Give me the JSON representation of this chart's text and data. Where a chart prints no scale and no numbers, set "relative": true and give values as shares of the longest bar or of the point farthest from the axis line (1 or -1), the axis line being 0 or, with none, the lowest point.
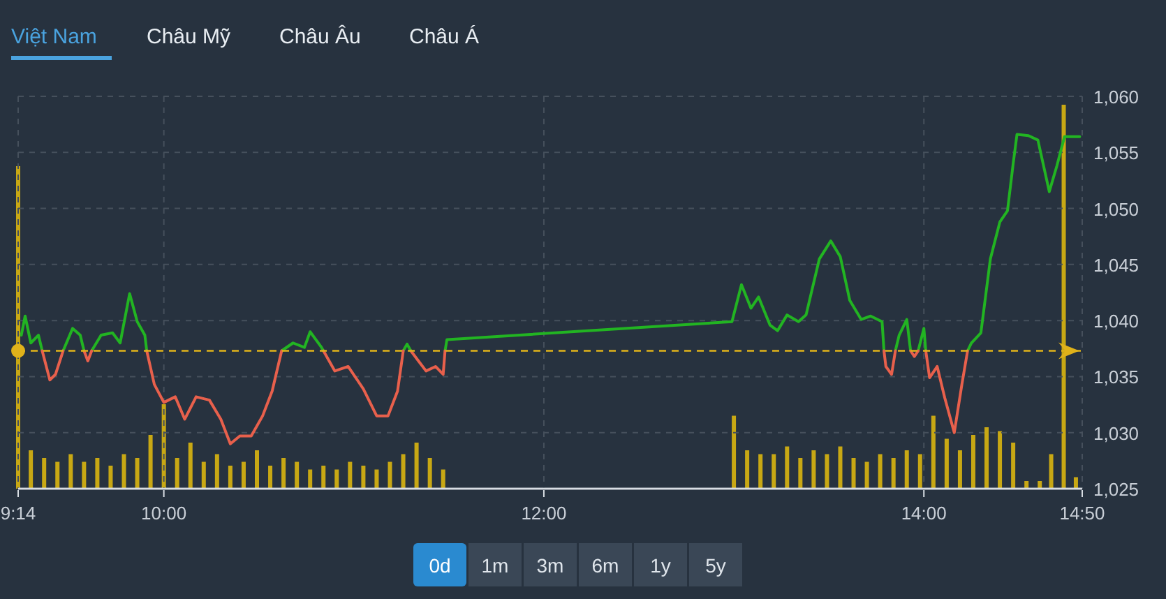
{
  "chart_data": [
    {
      "type": "line",
      "annotations": [
        "Việt Nam",
        "Châu Mỹ",
        "Châu Âu",
        "Châu Á",
        "0d",
        "1m",
        "3m",
        "6m",
        "1y",
        "5y"
      ],
      "xlim": [
        9.2333,
        14.8333
      ],
      "xticks": [
        {
          "value": 9.2333,
          "label": "9:14"
        },
        {
          "value": 10,
          "label": "10:00"
        },
        {
          "value": 12,
          "label": "12:00"
        },
        {
          "value": 14,
          "label": "14:00"
        },
        {
          "value": 14.8333,
          "label": "14:50"
        }
      ],
      "ylim": [
        1025,
        1060
      ],
      "yticks": [
        {
          "value": 1025,
          "label": "1,025"
        },
        {
          "value": 1030,
          "label": "1,030"
        },
        {
          "value": 1035,
          "label": "1,035"
        },
        {
          "value": 1040,
          "label": "1,040"
        },
        {
          "value": 1045,
          "label": "1,045"
        },
        {
          "value": 1050,
          "label": "1,050"
        },
        {
          "value": 1055,
          "label": "1,055"
        },
        {
          "value": 1060,
          "label": "1,060"
        }
      ],
      "grid": true,
      "line_style": "solid",
      "marker": "none",
      "ref_lines": [
        {
          "axis": "y",
          "value": 1037.3,
          "color": "#e0b21a",
          "line_style": "dashed"
        }
      ],
      "series": [
        {
          "color": "#22b422",
          "x": [
            9.25,
            9.27,
            9.3,
            9.34,
            9.36,
            9.4,
            9.47,
            9.52,
            9.56,
            9.58,
            9.6,
            9.62,
            9.67,
            9.73,
            9.77,
            9.82,
            9.86,
            9.9,
            9.91,
            10.3,
            10.62,
            10.68,
            10.74,
            10.77,
            10.83,
            10.84,
            11.0,
            11.26,
            11.28,
            11.3,
            11.4,
            11.48,
            11.49,
            12.99,
            13.04,
            13.09,
            13.13,
            13.19,
            13.23,
            13.28,
            13.34,
            13.38,
            13.45,
            13.51,
            13.56,
            13.61,
            13.67,
            13.72,
            13.78,
            13.79,
            13.82,
            13.85,
            13.87,
            13.91,
            13.93,
            13.95,
            13.97,
            14.0,
            14.01,
            14.1,
            14.23,
            14.25,
            14.3,
            14.35,
            14.4,
            14.44,
            14.47,
            14.49,
            14.55,
            14.6,
            14.66,
            14.7,
            14.74,
            14.82
          ],
          "values": [
            1038.7,
            1040.4,
            1038.0,
            1038.7,
            1037.3,
            null,
            1037.3,
            1039.3,
            1038.7,
            1037.3,
            null,
            1037.3,
            1038.7,
            1038.9,
            1038.0,
            1042.4,
            1039.9,
            1038.7,
            1037.3,
            null,
            1037.3,
            1038.0,
            1037.6,
            1039.0,
            1037.6,
            1037.3,
            null,
            1037.3,
            1037.9,
            1037.3,
            null,
            1037.3,
            1038.3,
            1039.9,
            1043.2,
            1041.1,
            1042.1,
            1039.6,
            1039.1,
            1040.5,
            1039.9,
            1040.5,
            1045.5,
            1047.1,
            1045.7,
            1041.8,
            1040.1,
            1040.4,
            1039.9,
            1037.3,
            null,
            1037.3,
            1038.7,
            1040.1,
            1037.3,
            null,
            1037.3,
            1039.3,
            1037.3,
            null,
            1037.3,
            1038.0,
            1038.9,
            1045.5,
            1048.8,
            1049.8,
            1054.0,
            1056.6,
            1056.5,
            1056.1,
            1051.5,
            1053.8,
            1056.4,
            1056.4
          ]
        },
        {
          "color": "#e8604c",
          "x": [
            9.36,
            9.4,
            9.43,
            9.47,
            9.52,
            9.58,
            9.6,
            9.62,
            9.7,
            9.91,
            9.95,
            10.0,
            10.06,
            10.11,
            10.17,
            10.24,
            10.3,
            10.35,
            10.4,
            10.46,
            10.52,
            10.57,
            10.62,
            10.7,
            10.84,
            10.9,
            10.97,
            11.05,
            11.12,
            11.18,
            11.23,
            11.26,
            11.28,
            11.3,
            11.34,
            11.38,
            11.43,
            11.47,
            11.48,
            12.0,
            13.79,
            13.8,
            13.83,
            13.85,
            13.89,
            13.93,
            13.95,
            13.97,
            13.99,
            14.01,
            14.03,
            14.07,
            14.11,
            14.16,
            14.2,
            14.23
          ],
          "values": [
            1037.3,
            1034.7,
            1035.2,
            1037.3,
            null,
            1037.3,
            1036.4,
            1037.3,
            null,
            1037.3,
            1034.3,
            1032.7,
            1033.2,
            1031.2,
            1033.2,
            1032.9,
            1031.2,
            1029.0,
            1029.7,
            1029.7,
            1031.5,
            1033.7,
            1037.3,
            null,
            1037.3,
            1035.5,
            1035.9,
            1033.9,
            1031.5,
            1031.5,
            1033.7,
            1037.3,
            null,
            1037.3,
            1036.4,
            1035.5,
            1035.9,
            1035.2,
            1037.3,
            null,
            1037.3,
            1035.9,
            1035.2,
            1037.3,
            null,
            1037.3,
            1036.8,
            1037.3,
            null,
            1037.3,
            1034.9,
            1035.9,
            1033.1,
            1030.0,
            1034.3,
            1037.3
          ]
        }
      ]
    },
    {
      "type": "bar",
      "relative": true,
      "tick_labels": false,
      "xlim": [
        9.2333,
        14.8333
      ],
      "series": [
        {
          "color": "#c8a814",
          "x": [
            9.2333,
            9.3,
            9.37,
            9.44,
            9.51,
            9.58,
            9.65,
            9.72,
            9.79,
            9.86,
            9.93,
            10.0,
            10.07,
            10.14,
            10.21,
            10.28,
            10.35,
            10.42,
            10.49,
            10.56,
            10.63,
            10.7,
            10.77,
            10.84,
            10.91,
            10.98,
            11.05,
            11.12,
            11.19,
            11.26,
            11.33,
            11.4,
            11.47,
            13.0,
            13.07,
            13.14,
            13.21,
            13.28,
            13.35,
            13.42,
            13.49,
            13.56,
            13.63,
            13.7,
            13.77,
            13.84,
            13.91,
            13.98,
            14.05,
            14.12,
            14.19,
            14.26,
            14.33,
            14.4,
            14.47,
            14.54,
            14.61,
            14.67,
            14.736,
            14.8
          ],
          "values": [
            0.84,
            0.1,
            0.08,
            0.07,
            0.09,
            0.07,
            0.08,
            0.06,
            0.09,
            0.08,
            0.14,
            0.22,
            0.08,
            0.12,
            0.07,
            0.09,
            0.06,
            0.07,
            0.1,
            0.06,
            0.08,
            0.07,
            0.05,
            0.06,
            0.05,
            0.07,
            0.06,
            0.05,
            0.07,
            0.09,
            0.12,
            0.08,
            0.05,
            0.19,
            0.1,
            0.09,
            0.09,
            0.11,
            0.08,
            0.1,
            0.09,
            0.11,
            0.08,
            0.07,
            0.09,
            0.08,
            0.1,
            0.09,
            0.19,
            0.13,
            0.1,
            0.14,
            0.16,
            0.15,
            0.12,
            0.02,
            0.02,
            0.09,
            1.0,
            0.03
          ]
        }
      ]
    }
  ]
}
